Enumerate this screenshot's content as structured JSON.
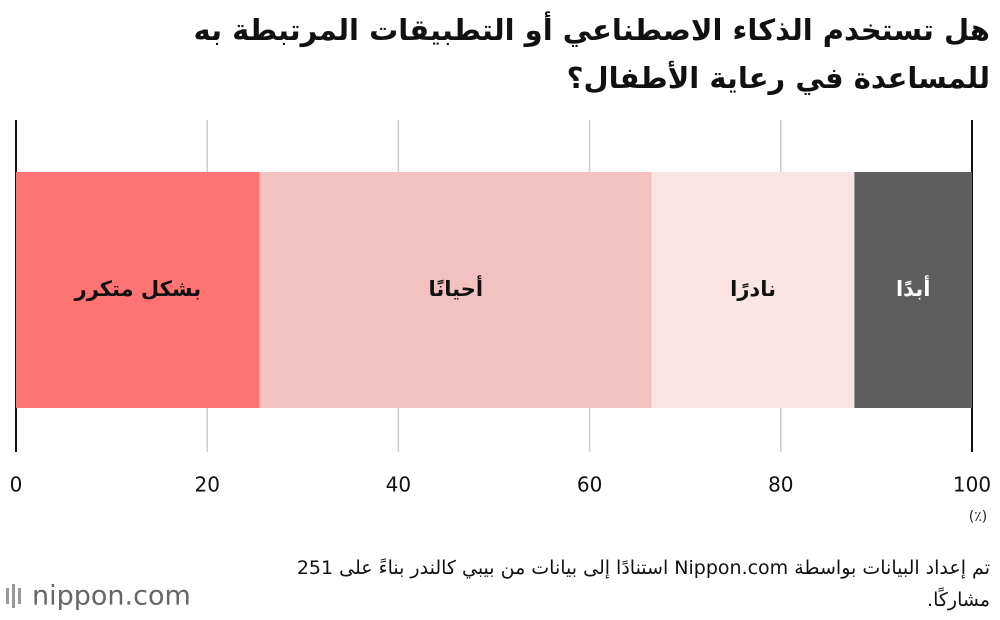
{
  "chart_data": {
    "type": "stacked-bar",
    "title": "هل تستخدم الذكاء الاصطناعي أو التطبيقات المرتبطة به للمساعدة في رعاية الأطفال؟",
    "x_label": "(٪)",
    "series": [
      {
        "name": "بشكل متكرر",
        "color": "#ff7373",
        "values": [
          25.5
        ]
      },
      {
        "name": "أحيانًا",
        "color": "#f2c1c0",
        "values": [
          41.0
        ]
      },
      {
        "name": "نادرًا",
        "color": "#fbe5e4",
        "values": [
          21.2
        ]
      },
      {
        "name": "أبدًا",
        "color": "#5e5e5e",
        "values": [
          12.3
        ]
      }
    ],
    "xlim": [
      0,
      100
    ],
    "xticks": [
      0,
      20,
      40,
      60,
      80,
      100
    ],
    "grid": true,
    "source": "تم إعداد البيانات بواسطة Nippon.com استنادًا إلى بيانات من بيبي كالندر بناءً على 251 مشاركًا.",
    "logo": "nippon.com"
  }
}
